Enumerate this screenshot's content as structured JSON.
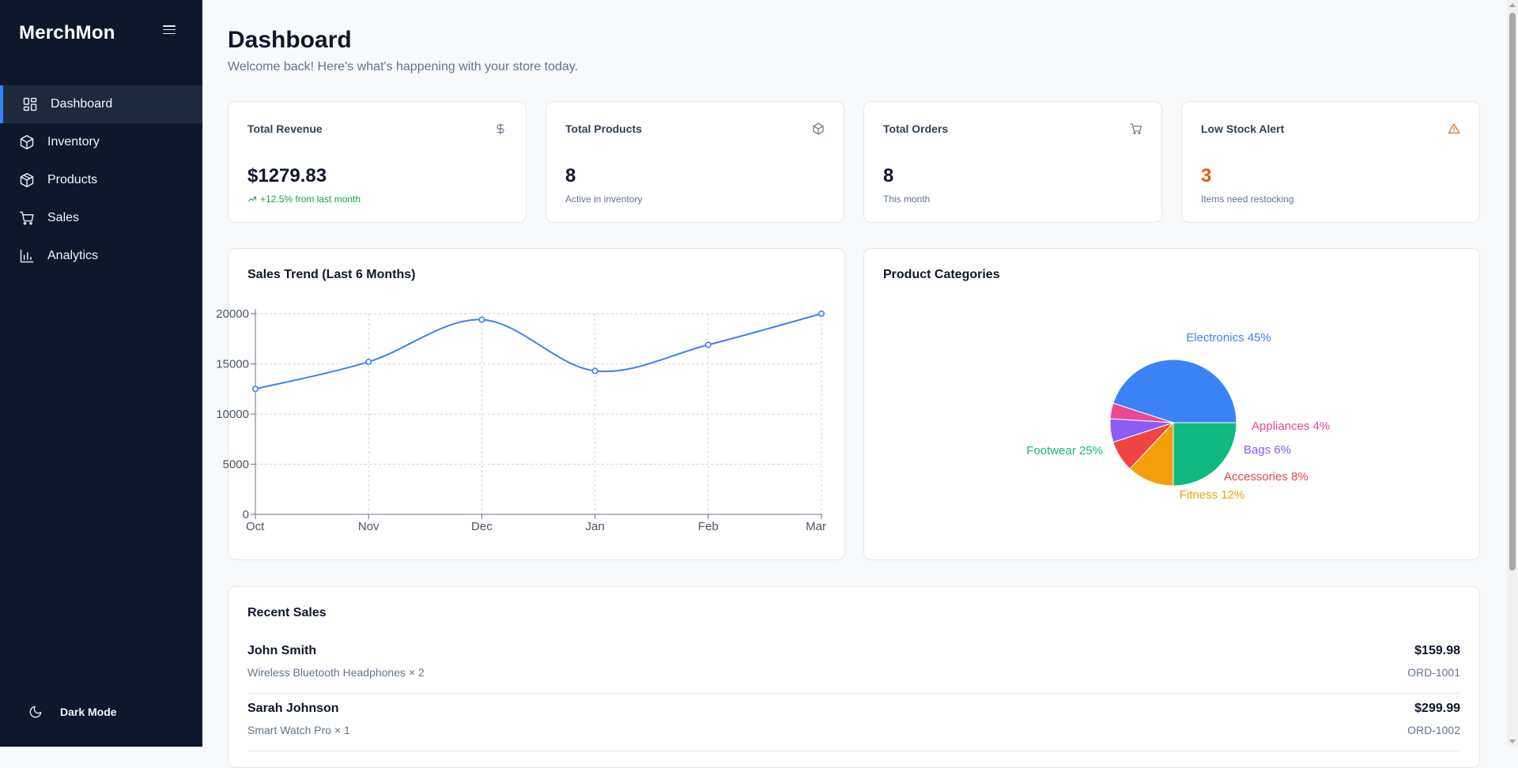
{
  "app": {
    "brand": "MerchMon"
  },
  "sidebar": {
    "items": [
      {
        "label": "Dashboard",
        "icon": "dashboard-grid-icon",
        "active": true
      },
      {
        "label": "Inventory",
        "icon": "box-icon"
      },
      {
        "label": "Products",
        "icon": "package-icon"
      },
      {
        "label": "Sales",
        "icon": "cart-icon"
      },
      {
        "label": "Analytics",
        "icon": "bar-chart-icon"
      }
    ],
    "dark_mode_label": "Dark Mode"
  },
  "header": {
    "title": "Dashboard",
    "subtitle": "Welcome back! Here's what's happening with your store today."
  },
  "stats": [
    {
      "title": "Total Revenue",
      "icon": "dollar-icon",
      "value": "$1279.83",
      "note": "+12.5% from last month",
      "note_type": "up"
    },
    {
      "title": "Total Products",
      "icon": "box-icon",
      "value": "8",
      "note": "Active in inventory"
    },
    {
      "title": "Total Orders",
      "icon": "cart-icon",
      "value": "8",
      "note": "This month"
    },
    {
      "title": "Low Stock Alert",
      "icon": "warning-icon",
      "value": "3",
      "note": "Items need restocking",
      "value_type": "warn"
    }
  ],
  "colors": {
    "accent": "#3b82f6",
    "sidebar_bg": "#0f172a",
    "warn": "#ea580c",
    "up": "#16a34a"
  },
  "sales_trend": {
    "title": "Sales Trend (Last 6 Months)",
    "chart_data": {
      "type": "line",
      "categories": [
        "Oct",
        "Nov",
        "Dec",
        "Jan",
        "Feb",
        "Mar"
      ],
      "series": [
        {
          "values": [
            12500,
            15200,
            19400,
            14300,
            16900,
            20000
          ],
          "color": "#3b82f6"
        }
      ],
      "ylim": [
        0,
        20000
      ],
      "yticks": [
        0,
        5000,
        10000,
        15000,
        20000
      ],
      "grid": true
    }
  },
  "categories_chart": {
    "title": "Product Categories",
    "chart_data": {
      "type": "pie",
      "slices": [
        {
          "name": "Electronics",
          "value": 45,
          "label": "Electronics 45%",
          "color": "#3b82f6"
        },
        {
          "name": "Appliances",
          "value": 4,
          "label": "Appliances 4%",
          "color": "#ec4899"
        },
        {
          "name": "Bags",
          "value": 6,
          "label": "Bags 6%",
          "color": "#8b5cf6"
        },
        {
          "name": "Accessories",
          "value": 8,
          "label": "Accessories 8%",
          "color": "#ef4444"
        },
        {
          "name": "Fitness",
          "value": 12,
          "label": "Fitness 12%",
          "color": "#f59e0b"
        },
        {
          "name": "Footwear",
          "value": 25,
          "label": "Footwear 25%",
          "color": "#10b981"
        }
      ]
    }
  },
  "recent_sales": {
    "title": "Recent Sales",
    "rows": [
      {
        "customer": "John Smith",
        "item": "Wireless Bluetooth Headphones × 2",
        "amount": "$159.98",
        "order_id": "ORD-1001"
      },
      {
        "customer": "Sarah Johnson",
        "item": "Smart Watch Pro × 1",
        "amount": "$299.99",
        "order_id": "ORD-1002"
      }
    ]
  }
}
